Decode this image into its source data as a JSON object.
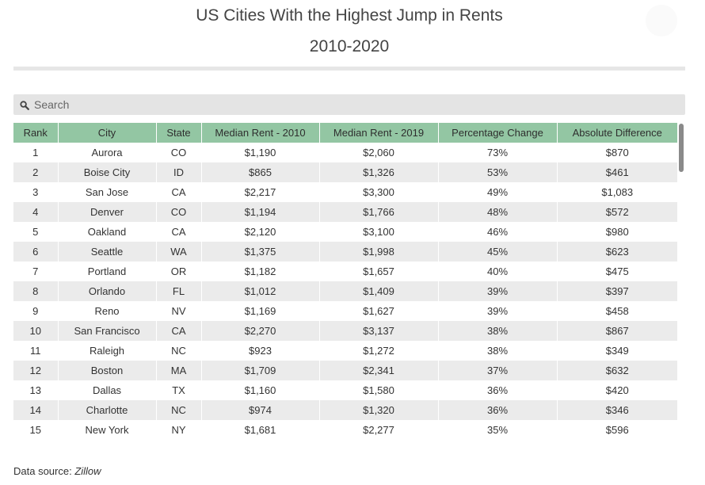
{
  "header": {
    "title": "US Cities With the Highest Jump in Rents",
    "subtitle": "2010-2020"
  },
  "search": {
    "placeholder": "Search",
    "icon": "search-icon"
  },
  "table": {
    "columns": [
      "Rank",
      "City",
      "State",
      "Median Rent - 2010",
      "Median Rent - 2019",
      "Percentage Change",
      "Absolute Difference"
    ],
    "header_color": "#93c6a3",
    "rows": [
      [
        "1",
        "Aurora",
        "CO",
        "$1,190",
        "$2,060",
        "73%",
        "$870"
      ],
      [
        "2",
        "Boise City",
        "ID",
        "$865",
        "$1,326",
        "53%",
        "$461"
      ],
      [
        "3",
        "San Jose",
        "CA",
        "$2,217",
        "$3,300",
        "49%",
        "$1,083"
      ],
      [
        "4",
        "Denver",
        "CO",
        "$1,194",
        "$1,766",
        "48%",
        "$572"
      ],
      [
        "5",
        "Oakland",
        "CA",
        "$2,120",
        "$3,100",
        "46%",
        "$980"
      ],
      [
        "6",
        "Seattle",
        "WA",
        "$1,375",
        "$1,998",
        "45%",
        "$623"
      ],
      [
        "7",
        "Portland",
        "OR",
        "$1,182",
        "$1,657",
        "40%",
        "$475"
      ],
      [
        "8",
        "Orlando",
        "FL",
        "$1,012",
        "$1,409",
        "39%",
        "$397"
      ],
      [
        "9",
        "Reno",
        "NV",
        "$1,169",
        "$1,627",
        "39%",
        "$458"
      ],
      [
        "10",
        "San Francisco",
        "CA",
        "$2,270",
        "$3,137",
        "38%",
        "$867"
      ],
      [
        "11",
        "Raleigh",
        "NC",
        "$923",
        "$1,272",
        "38%",
        "$349"
      ],
      [
        "12",
        "Boston",
        "MA",
        "$1,709",
        "$2,341",
        "37%",
        "$632"
      ],
      [
        "13",
        "Dallas",
        "TX",
        "$1,160",
        "$1,580",
        "36%",
        "$420"
      ],
      [
        "14",
        "Charlotte",
        "NC",
        "$974",
        "$1,320",
        "36%",
        "$346"
      ],
      [
        "15",
        "New York",
        "NY",
        "$1,681",
        "$2,277",
        "35%",
        "$596"
      ]
    ]
  },
  "footer": {
    "source_label": "Data source: ",
    "source_name": "Zillow"
  }
}
